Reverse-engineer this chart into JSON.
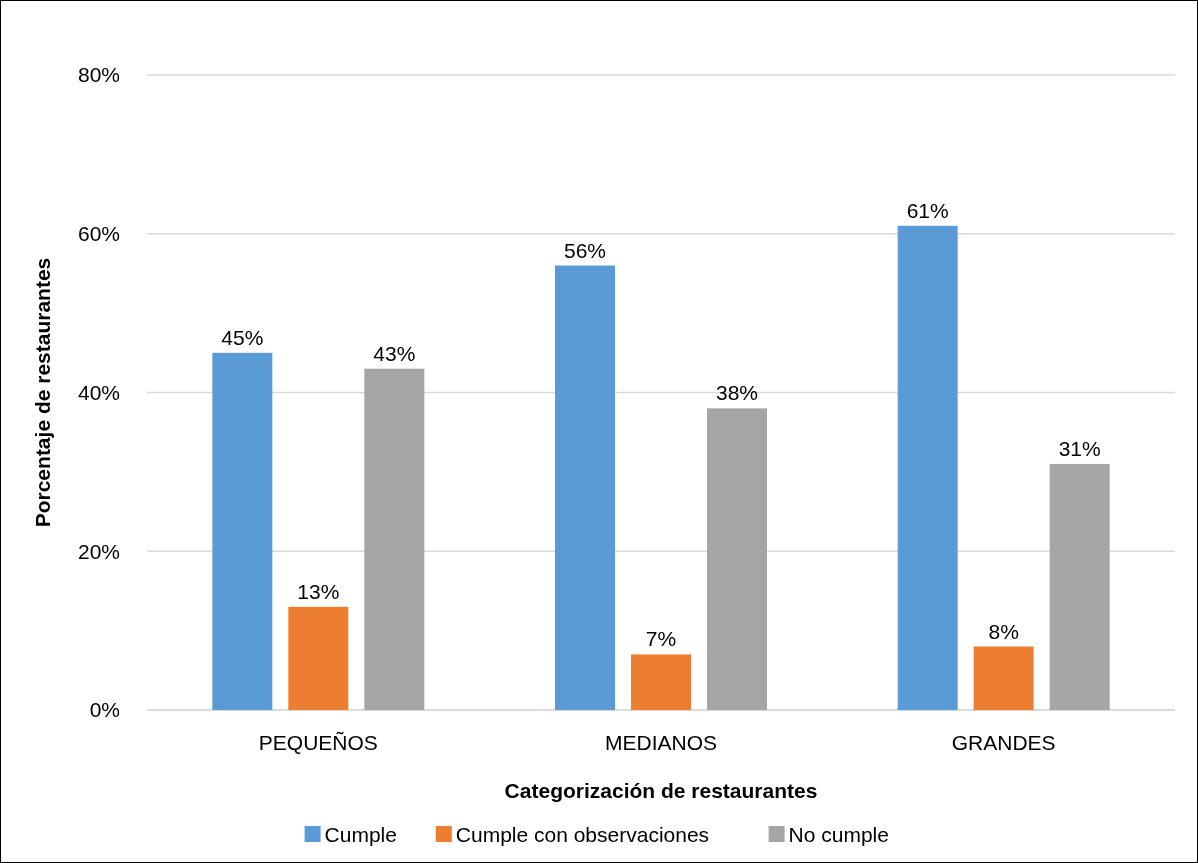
{
  "chart_data": {
    "type": "bar",
    "xlabel": "Categorización de restaurantes",
    "ylabel": "Porcentaje de restaurantes",
    "categories": [
      "PEQUEÑOS",
      "MEDIANOS",
      "GRANDES"
    ],
    "series": [
      {
        "name": "Cumple",
        "color": "#5b9bd5",
        "values": [
          45,
          56,
          61
        ],
        "value_labels": [
          "45%",
          "56%",
          "61%"
        ]
      },
      {
        "name": "Cumple con observaciones",
        "color": "#ed7d31",
        "values": [
          13,
          7,
          8
        ],
        "value_labels": [
          "13%",
          "7%",
          "8%"
        ]
      },
      {
        "name": "No cumple",
        "color": "#a5a5a5",
        "values": [
          43,
          38,
          31
        ],
        "value_labels": [
          "43%",
          "38%",
          "31%"
        ]
      }
    ],
    "ylim": [
      0,
      80
    ],
    "yticks": [
      {
        "value": 0,
        "label": "0%"
      },
      {
        "value": 20,
        "label": "20%"
      },
      {
        "value": 40,
        "label": "40%"
      },
      {
        "value": 60,
        "label": "60%"
      },
      {
        "value": 80,
        "label": "80%"
      }
    ],
    "grid": "y",
    "legend": "bottom"
  }
}
